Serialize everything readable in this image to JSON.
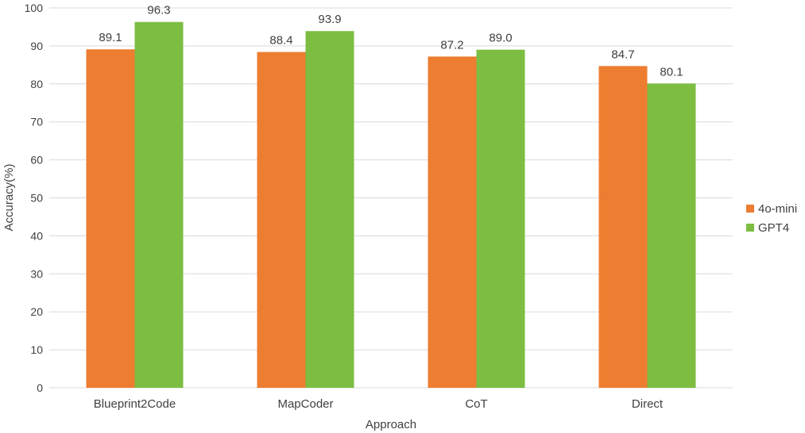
{
  "chart_data": {
    "type": "bar",
    "categories": [
      "Blueprint2Code",
      "MapCoder",
      "CoT",
      "Direct"
    ],
    "series": [
      {
        "name": "4o-mini",
        "values": [
          89.1,
          88.4,
          87.2,
          84.7
        ],
        "color": "#ED7D31"
      },
      {
        "name": "GPT4",
        "values": [
          96.3,
          93.9,
          89.0,
          80.1
        ],
        "color": "#7CBD42"
      }
    ],
    "data_labels": [
      [
        "89.1",
        "88.4",
        "87.2",
        "84.7"
      ],
      [
        "96.3",
        "93.9",
        "89.0",
        "80.1"
      ]
    ],
    "xlabel": "Approach",
    "ylabel": "Accuracy(%)",
    "ylim": [
      0,
      100
    ],
    "yticks": [
      "0",
      "10",
      "20",
      "30",
      "40",
      "50",
      "60",
      "70",
      "80",
      "90",
      "100"
    ],
    "grid": true,
    "gridColor": "#D9D9D9",
    "legend": "right"
  }
}
